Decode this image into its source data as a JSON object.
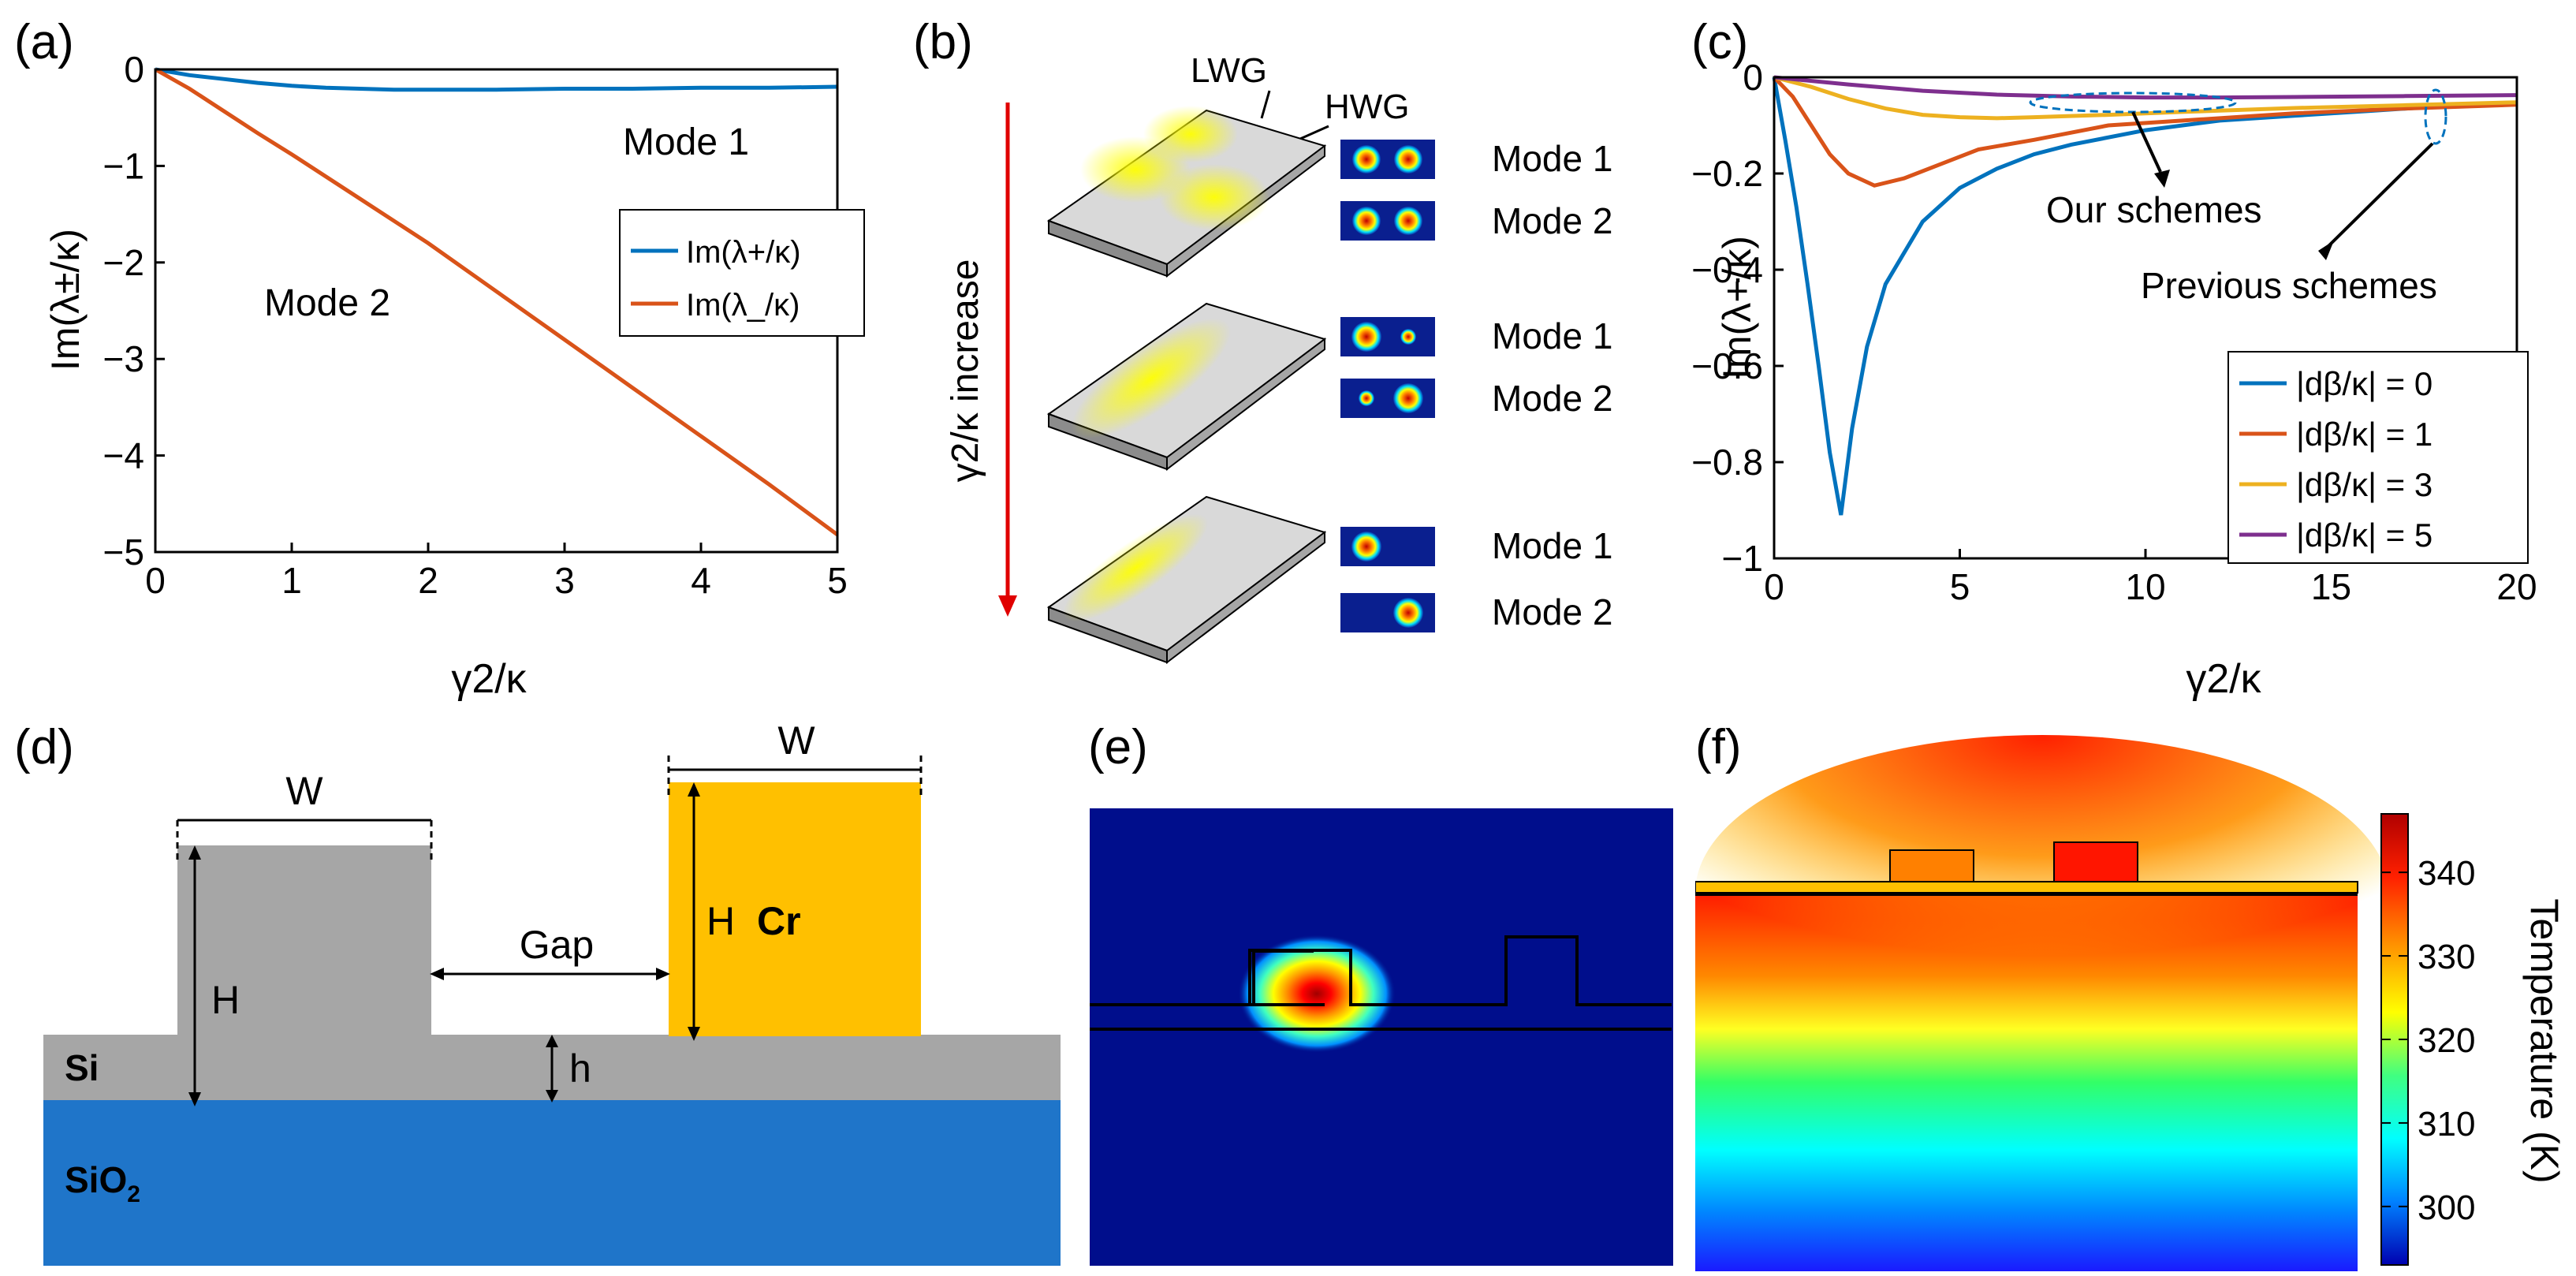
{
  "panels": {
    "a": {
      "label": "(a)"
    },
    "b": {
      "label": "(b)"
    },
    "c": {
      "label": "(c)"
    },
    "d": {
      "label": "(d)"
    },
    "e": {
      "label": "(e)"
    },
    "f": {
      "label": "(f)"
    }
  },
  "chart_data": [
    {
      "id": "a",
      "type": "line",
      "xlabel": "γ2/κ",
      "ylabel": "Im(λ±/κ)",
      "xlim": [
        0,
        5
      ],
      "ylim": [
        -5,
        0
      ],
      "xticks": [
        "0",
        "1",
        "2",
        "3",
        "4",
        "5"
      ],
      "yticks": [
        "0",
        "−1",
        "−2",
        "−3",
        "−4",
        "−5"
      ],
      "annotations": [
        "Mode 1",
        "Mode 2"
      ],
      "legend": [
        "Im(λ+/κ)",
        "Im(λ_/κ)"
      ],
      "legend_position": "right",
      "series": [
        {
          "name": "Im(λ+/κ)",
          "color": "#0072BD",
          "x": [
            0,
            0.25,
            0.5,
            0.75,
            1,
            1.25,
            1.5,
            1.75,
            2,
            2.5,
            3,
            3.5,
            4,
            4.5,
            5
          ],
          "y": [
            0,
            -0.06,
            -0.1,
            -0.14,
            -0.17,
            -0.19,
            -0.2,
            -0.21,
            -0.21,
            -0.21,
            -0.2,
            -0.2,
            -0.19,
            -0.19,
            -0.18
          ]
        },
        {
          "name": "Im(λ_/κ)",
          "color": "#D95319",
          "x": [
            0,
            0.25,
            0.5,
            0.75,
            1,
            1.5,
            2,
            2.5,
            3,
            3.5,
            4,
            4.5,
            5
          ],
          "y": [
            0,
            -0.2,
            -0.43,
            -0.66,
            -0.88,
            -1.34,
            -1.8,
            -2.3,
            -2.8,
            -3.3,
            -3.8,
            -4.3,
            -4.82
          ]
        }
      ]
    },
    {
      "id": "c",
      "type": "line",
      "xlabel": "γ2/κ",
      "ylabel": "Im(λ+/κ)",
      "xlim": [
        0,
        20
      ],
      "ylim": [
        -1,
        0
      ],
      "xticks": [
        "0",
        "5",
        "10",
        "15",
        "20"
      ],
      "yticks": [
        "0",
        "−0.2",
        "−0.4",
        "−0.6",
        "−0.8",
        "−1"
      ],
      "annotations": [
        "Our schemes",
        "Previous schemes"
      ],
      "legend_position": "bottom-right",
      "series": [
        {
          "name": "|dβ/κ| = 0",
          "color": "#0072BD",
          "x": [
            0,
            0.3,
            0.6,
            0.9,
            1.2,
            1.5,
            1.8,
            2.1,
            2.5,
            3,
            4,
            5,
            6,
            7,
            8,
            10,
            12,
            14,
            16,
            18,
            20
          ],
          "y": [
            0,
            -0.13,
            -0.27,
            -0.43,
            -0.6,
            -0.78,
            -0.91,
            -0.73,
            -0.56,
            -0.43,
            -0.3,
            -0.23,
            -0.19,
            -0.16,
            -0.14,
            -0.11,
            -0.09,
            -0.08,
            -0.07,
            -0.06,
            -0.055
          ]
        },
        {
          "name": "|dβ/κ| = 1",
          "color": "#D95319",
          "x": [
            0,
            0.5,
            1,
            1.5,
            2,
            2.7,
            3.5,
            4.5,
            5.5,
            7,
            9,
            11,
            14,
            17,
            20
          ],
          "y": [
            0,
            -0.04,
            -0.1,
            -0.16,
            -0.2,
            -0.225,
            -0.21,
            -0.18,
            -0.15,
            -0.13,
            -0.1,
            -0.09,
            -0.075,
            -0.065,
            -0.057
          ]
        },
        {
          "name": "|dβ/κ| = 3",
          "color": "#EDB120",
          "x": [
            0,
            1,
            2,
            3,
            4,
            5,
            6,
            7,
            9,
            11,
            14,
            17,
            20
          ],
          "y": [
            0,
            -0.02,
            -0.045,
            -0.065,
            -0.078,
            -0.083,
            -0.085,
            -0.083,
            -0.078,
            -0.072,
            -0.064,
            -0.058,
            -0.052
          ]
        },
        {
          "name": "|dβ/κ| = 5",
          "color": "#7E2F8E",
          "x": [
            0,
            2,
            4,
            6,
            8,
            10,
            12,
            14,
            17,
            20
          ],
          "y": [
            0,
            -0.015,
            -0.028,
            -0.036,
            -0.04,
            -0.042,
            -0.042,
            -0.041,
            -0.039,
            -0.037
          ]
        }
      ]
    }
  ],
  "panel_b": {
    "labels": [
      "LWG",
      "HWG"
    ],
    "axis_label": "γ2/κ  increase",
    "modes": [
      "Mode 1",
      "Mode 2",
      "Mode 1",
      "Mode 2",
      "Mode 1",
      "Mode 2"
    ]
  },
  "panel_d": {
    "W_left": "W",
    "W_right": "W",
    "H_left": "H",
    "H_right": "H",
    "gap": "Gap",
    "h": "h",
    "cr": "Cr",
    "si": "Si",
    "sio2": "SiO",
    "sio2_sub": "2",
    "colors": {
      "si": "#a6a6a6",
      "sio2": "#1f75c9",
      "cr": "#ffc000"
    }
  },
  "panel_f": {
    "colorbar_title": "Temperature (K)",
    "colorbar_ticks": [
      "340",
      "330",
      "320",
      "310",
      "300"
    ],
    "colorbar_range": [
      293,
      347
    ]
  }
}
